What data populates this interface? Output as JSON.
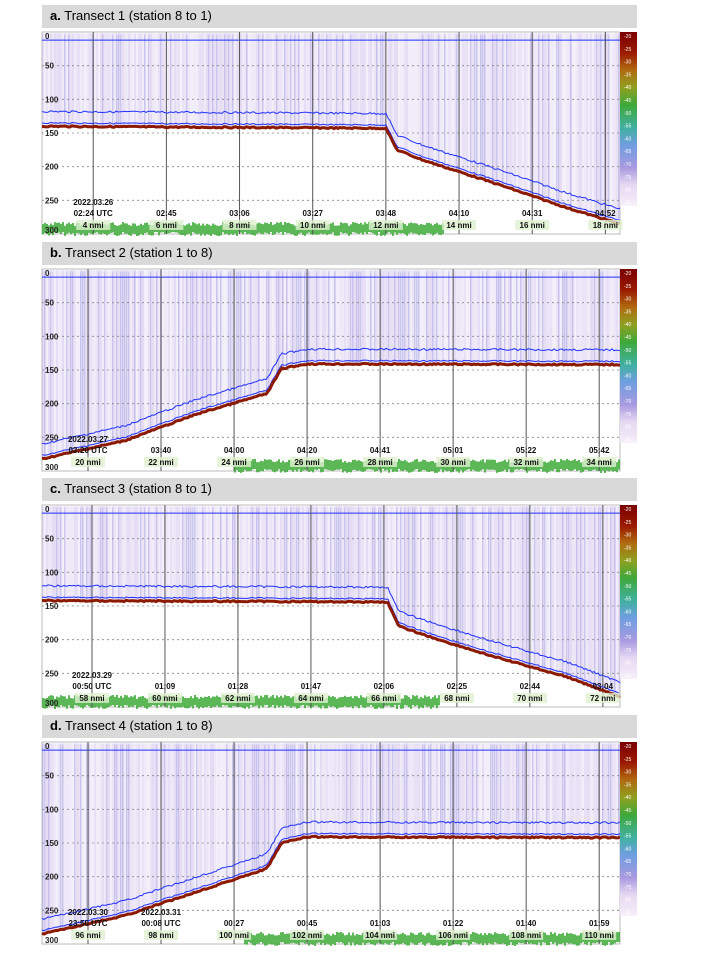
{
  "colors": {
    "bottom_line": "#8b1a00",
    "range_lines": "#2030ff",
    "water_haze": "#b49be0",
    "seabed_echo": "#3faa3a",
    "title_bar": "#d9d9d9"
  },
  "colorbar": {
    "ticks": [
      "-20",
      "-25",
      "-30",
      "-35",
      "-40",
      "-45",
      "-50",
      "-55",
      "-60",
      "-65",
      "-70",
      "-75",
      "-80",
      "-85",
      "-90",
      "-95"
    ],
    "markers": [
      "-30",
      "-85"
    ],
    "range_db": [
      -20,
      -95
    ]
  },
  "chart_data": [
    {
      "type": "heatmap",
      "letter": "a.",
      "title": "Transect 1 (station 8 to 1)",
      "yticks": [
        "0",
        "50",
        "100",
        "150",
        "200",
        "250",
        "300"
      ],
      "ylim": [
        0,
        300
      ],
      "y_inverted": true,
      "xlim_nmi": [
        2.6,
        18.4
      ],
      "x_labels": [
        {
          "nmi": 4,
          "date": "2022.03.26",
          "time": "02:24 UTC",
          "dist": "4 nmi"
        },
        {
          "nmi": 6,
          "time": "02:45",
          "dist": "6 nmi"
        },
        {
          "nmi": 8,
          "time": "03:06",
          "dist": "8 nmi"
        },
        {
          "nmi": 10,
          "time": "03:27",
          "dist": "10 nmi"
        },
        {
          "nmi": 12,
          "time": "03:48",
          "dist": "12 nmi"
        },
        {
          "nmi": 14,
          "time": "04:10",
          "dist": "14 nmi"
        },
        {
          "nmi": 16,
          "time": "04:31",
          "dist": "16 nmi"
        },
        {
          "nmi": 18,
          "time": "04:52",
          "dist": "18 nmi"
        }
      ],
      "bottom_depth": [
        [
          2.6,
          140
        ],
        [
          12.0,
          143
        ],
        [
          12.3,
          175
        ],
        [
          13,
          190
        ],
        [
          15,
          225
        ],
        [
          17,
          262
        ],
        [
          18.4,
          285
        ]
      ]
    },
    {
      "type": "heatmap",
      "letter": "b.",
      "title": "Transect 2 (station 1 to 8)",
      "yticks": [
        "0",
        "50",
        "100",
        "150",
        "200",
        "250",
        "300"
      ],
      "ylim": [
        0,
        300
      ],
      "y_inverted": true,
      "xlim_nmi": [
        18.74,
        34.57
      ],
      "x_labels": [
        {
          "nmi": 20,
          "date": "2022.03.27",
          "time": "03:20 UTC",
          "dist": "20 nmi"
        },
        {
          "nmi": 22,
          "time": "03:40",
          "dist": "22 nmi"
        },
        {
          "nmi": 24,
          "time": "04:00",
          "dist": "24 nmi"
        },
        {
          "nmi": 26,
          "time": "04:20",
          "dist": "26 nmi"
        },
        {
          "nmi": 28,
          "time": "04:41",
          "dist": "28 nmi"
        },
        {
          "nmi": 30,
          "time": "05:01",
          "dist": "30 nmi"
        },
        {
          "nmi": 32,
          "time": "05:22",
          "dist": "32 nmi"
        },
        {
          "nmi": 34,
          "time": "05:42",
          "dist": "34 nmi"
        }
      ],
      "bottom_depth": [
        [
          18.74,
          282
        ],
        [
          21,
          255
        ],
        [
          23,
          215
        ],
        [
          24.9,
          185
        ],
        [
          25.3,
          148
        ],
        [
          26,
          141
        ],
        [
          34.57,
          142
        ]
      ]
    },
    {
      "type": "heatmap",
      "letter": "c.",
      "title": "Transect 3 (station 8 to 1)",
      "yticks": [
        "0",
        "50",
        "100",
        "150",
        "200",
        "250",
        "300"
      ],
      "ylim": [
        0,
        300
      ],
      "y_inverted": true,
      "xlim_nmi": [
        56.63,
        72.47
      ],
      "x_labels": [
        {
          "nmi": 58,
          "date": "2022.03.29",
          "time": "00:50 UTC",
          "dist": "58 nmi"
        },
        {
          "nmi": 60,
          "time": "01:09",
          "dist": "60 nmi"
        },
        {
          "nmi": 62,
          "time": "01:28",
          "dist": "62 nmi"
        },
        {
          "nmi": 64,
          "time": "01:47",
          "dist": "64 nmi"
        },
        {
          "nmi": 66,
          "time": "02:06",
          "dist": "66 nmi"
        },
        {
          "nmi": 68,
          "time": "02:25",
          "dist": "68 nmi"
        },
        {
          "nmi": 70,
          "time": "02:44",
          "dist": "70 nmi"
        },
        {
          "nmi": 72,
          "time": "03:04",
          "dist": "72 nmi"
        }
      ],
      "bottom_depth": [
        [
          56.63,
          142
        ],
        [
          66.1,
          144
        ],
        [
          66.4,
          180
        ],
        [
          67.5,
          200
        ],
        [
          69,
          225
        ],
        [
          71,
          255
        ],
        [
          72.47,
          285
        ]
      ]
    },
    {
      "type": "heatmap",
      "letter": "d.",
      "title": "Transect 4 (station 1 to 8)",
      "yticks": [
        "0",
        "50",
        "100",
        "150",
        "200",
        "250",
        "300"
      ],
      "ylim": [
        0,
        300
      ],
      "y_inverted": true,
      "xlim_nmi": [
        94.74,
        110.57
      ],
      "x_labels": [
        {
          "nmi": 96,
          "date": "2022.03.30",
          "time": "23:50 UTC",
          "dist": "96 nmi"
        },
        {
          "nmi": 98,
          "date": "2022.03.31",
          "time": "00:08 UTC",
          "dist": "98 nmi"
        },
        {
          "nmi": 100,
          "time": "00:27",
          "dist": "100 nmi"
        },
        {
          "nmi": 102,
          "time": "00:45",
          "dist": "102 nmi"
        },
        {
          "nmi": 104,
          "time": "01:03",
          "dist": "104 nmi"
        },
        {
          "nmi": 106,
          "time": "01:22",
          "dist": "106 nmi"
        },
        {
          "nmi": 108,
          "time": "01:40",
          "dist": "108 nmi"
        },
        {
          "nmi": 110,
          "time": "01:59",
          "dist": "110 nmi"
        }
      ],
      "bottom_depth": [
        [
          94.74,
          285
        ],
        [
          97,
          258
        ],
        [
          99,
          222
        ],
        [
          100.9,
          188
        ],
        [
          101.3,
          150
        ],
        [
          102,
          141
        ],
        [
          110.57,
          142
        ]
      ]
    }
  ]
}
